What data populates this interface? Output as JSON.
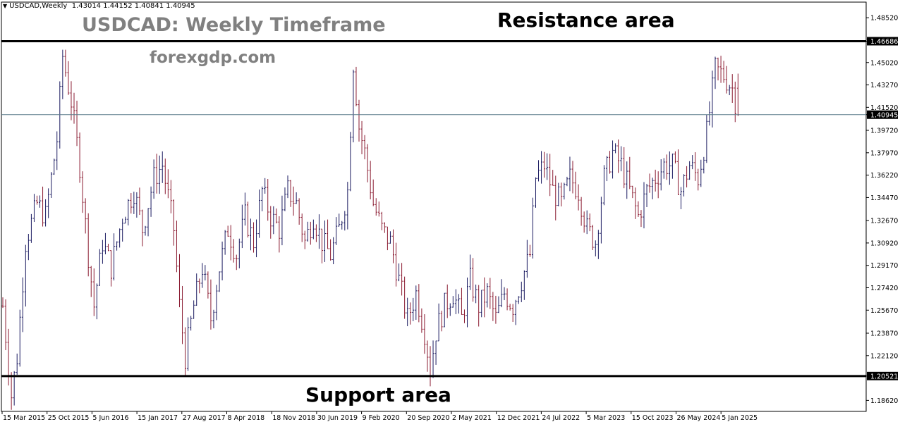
{
  "header": {
    "symbol_timeframe": "USDCAD,Weekly",
    "ohlc": "1.43014 1.44152 1.40841 1.40945",
    "arrow_icon": "triangle-down-icon"
  },
  "annotations": {
    "chart_title": "USDCAD: Weekly Timeframe",
    "website": "forexgdp.com",
    "resistance_label": "Resistance area",
    "support_label": "Support area"
  },
  "colors": {
    "background": "#ffffff",
    "bar": "#1a1a60",
    "bar_down": "#8a1a30",
    "horizontal_line": "#000000",
    "current_price_line": "#5a7a8a",
    "annotation_gray": "#808080",
    "annotation_black": "#000000"
  },
  "chart_data": {
    "type": "ohlc",
    "symbol": "USDCAD",
    "timeframe": "Weekly",
    "last": {
      "open": 1.43014,
      "high": 1.44152,
      "low": 1.40841,
      "close": 1.40945
    },
    "ylim": [
      1.1776,
      1.4974
    ],
    "y_ticks": [
      "1.48520",
      "1.46686",
      "1.45020",
      "1.43270",
      "1.41520",
      "1.40945",
      "1.39720",
      "1.37970",
      "1.36220",
      "1.34470",
      "1.32670",
      "1.30920",
      "1.29170",
      "1.27420",
      "1.25670",
      "1.23870",
      "1.22120",
      "1.20521",
      "1.18620"
    ],
    "highlighted_ticks": [
      "1.46686",
      "1.40945",
      "1.20521"
    ],
    "x_ticks": [
      "15 Mar 2015",
      "25 Oct 2015",
      "5 Jun 2016",
      "15 Jan 2017",
      "27 Aug 2017",
      "8 Apr 2018",
      "18 Nov 2018",
      "30 Jun 2019",
      "9 Feb 2020",
      "20 Sep 2020",
      "2 May 2021",
      "12 Dec 2021",
      "24 Jul 2022",
      "5 Mar 2023",
      "15 Oct 2023",
      "26 May 2024",
      "5 Jan 2025"
    ],
    "resistance_level": 1.46686,
    "support_level": 1.20521,
    "current_price": 1.40945,
    "price_path": [
      [
        0,
        1.26
      ],
      [
        3,
        1.19
      ],
      [
        5,
        1.22
      ],
      [
        8,
        1.31
      ],
      [
        12,
        1.34
      ],
      [
        15,
        1.33
      ],
      [
        19,
        1.39
      ],
      [
        21,
        1.455
      ],
      [
        24,
        1.42
      ],
      [
        27,
        1.37
      ],
      [
        30,
        1.3
      ],
      [
        32,
        1.26
      ],
      [
        35,
        1.31
      ],
      [
        38,
        1.29
      ],
      [
        42,
        1.33
      ],
      [
        46,
        1.35
      ],
      [
        49,
        1.32
      ],
      [
        53,
        1.36
      ],
      [
        56,
        1.37
      ],
      [
        60,
        1.32
      ],
      [
        62,
        1.26
      ],
      [
        64,
        1.22
      ],
      [
        67,
        1.26
      ],
      [
        70,
        1.29
      ],
      [
        73,
        1.25
      ],
      [
        76,
        1.29
      ],
      [
        79,
        1.32
      ],
      [
        82,
        1.3
      ],
      [
        85,
        1.33
      ],
      [
        88,
        1.31
      ],
      [
        91,
        1.35
      ],
      [
        94,
        1.33
      ],
      [
        97,
        1.32
      ],
      [
        100,
        1.35
      ],
      [
        103,
        1.34
      ],
      [
        106,
        1.31
      ],
      [
        109,
        1.33
      ],
      [
        112,
        1.31
      ],
      [
        115,
        1.3
      ],
      [
        118,
        1.32
      ],
      [
        121,
        1.35
      ],
      [
        123,
        1.45
      ],
      [
        125,
        1.4
      ],
      [
        127,
        1.38
      ],
      [
        130,
        1.34
      ],
      [
        133,
        1.32
      ],
      [
        136,
        1.31
      ],
      [
        139,
        1.28
      ],
      [
        142,
        1.25
      ],
      [
        145,
        1.27
      ],
      [
        148,
        1.24
      ],
      [
        150,
        1.21
      ],
      [
        152,
        1.24
      ],
      [
        155,
        1.26
      ],
      [
        158,
        1.27
      ],
      [
        161,
        1.25
      ],
      [
        164,
        1.28
      ],
      [
        167,
        1.26
      ],
      [
        170,
        1.27
      ],
      [
        173,
        1.25
      ],
      [
        176,
        1.27
      ],
      [
        179,
        1.26
      ],
      [
        182,
        1.28
      ],
      [
        185,
        1.3
      ],
      [
        187,
        1.36
      ],
      [
        190,
        1.37
      ],
      [
        193,
        1.35
      ],
      [
        196,
        1.34
      ],
      [
        199,
        1.36
      ],
      [
        202,
        1.35
      ],
      [
        205,
        1.32
      ],
      [
        208,
        1.31
      ],
      [
        211,
        1.36
      ],
      [
        214,
        1.38
      ],
      [
        217,
        1.37
      ],
      [
        220,
        1.35
      ],
      [
        223,
        1.33
      ],
      [
        226,
        1.35
      ],
      [
        229,
        1.36
      ],
      [
        232,
        1.37
      ],
      [
        235,
        1.37
      ],
      [
        238,
        1.35
      ],
      [
        241,
        1.37
      ],
      [
        244,
        1.36
      ],
      [
        247,
        1.395
      ],
      [
        250,
        1.445
      ],
      [
        253,
        1.44
      ],
      [
        256,
        1.43
      ],
      [
        258,
        1.41
      ]
    ]
  }
}
